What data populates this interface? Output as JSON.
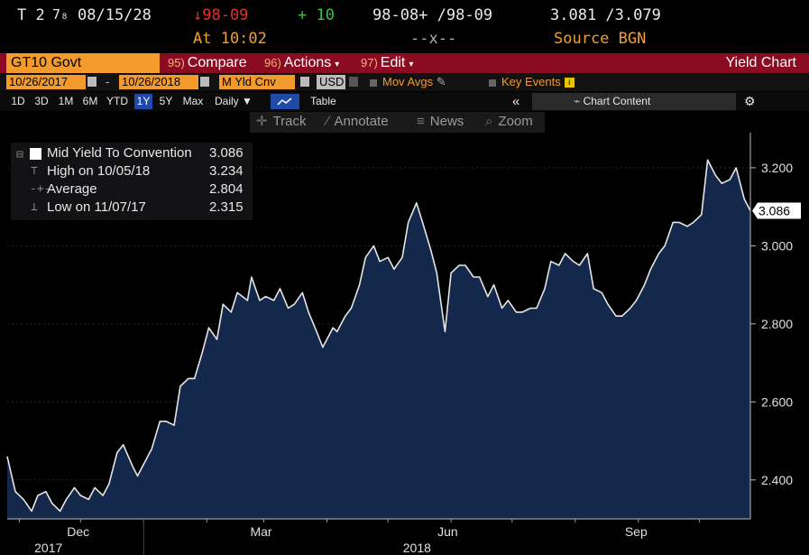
{
  "quote": {
    "security": "T 2",
    "coupon_frac": "7₈",
    "maturity": "08/15/28",
    "price": "↓98-09",
    "change": "+ 10",
    "time_label": "At 10:02",
    "bid_ask_price": "98-08+ /98-09",
    "bid_ask_sep": "--x--",
    "yield": "3.081 /3.079",
    "source": "Source BGN"
  },
  "toolbar": {
    "security_input": "GT10 Govt",
    "compare": {
      "num": "95)",
      "label": "Compare"
    },
    "actions": {
      "num": "96)",
      "label": "Actions"
    },
    "edit": {
      "num": "97)",
      "label": "Edit"
    },
    "chart_title": "Yield Chart"
  },
  "settings": {
    "start_date": "10/26/2017",
    "dash": "-",
    "end_date": "10/26/2018",
    "field": "M Yld Cnv",
    "currency": "USD",
    "mov_avgs": "Mov Avgs",
    "key_events": "Key Events"
  },
  "periods": {
    "items": [
      "1D",
      "3D",
      "1M",
      "6M",
      "YTD",
      "1Y",
      "5Y",
      "Max"
    ],
    "selected": "1Y",
    "frequency": "Daily",
    "table": "Table",
    "collapse": "«",
    "chart_content": "Chart Content"
  },
  "tools": {
    "track": "Track",
    "annotate": "Annotate",
    "news": "News",
    "zoom": "Zoom"
  },
  "legend": {
    "series": {
      "label": "Mid Yield To Convention",
      "value": "3.086"
    },
    "high": {
      "label": "High on 10/05/18",
      "value": "3.234"
    },
    "average": {
      "label": "Average",
      "value": "2.804"
    },
    "low": {
      "label": "Low on 11/07/17",
      "value": "2.315"
    }
  },
  "colors": {
    "line": "#e6e6e6",
    "area": "#13284a",
    "accent_orange": "#f39a2c",
    "bar_red": "#8a0b22"
  },
  "chart_data": {
    "type": "area",
    "series_name": "Mid Yield To Convention",
    "last_value_label": "3.086",
    "ylim": [
      2.3,
      3.29
    ],
    "yticks": [
      2.4,
      2.6,
      2.8,
      3.0,
      3.2
    ],
    "ytick_labels": [
      "2.400",
      "2.600",
      "2.800",
      "3.000",
      "3.200"
    ],
    "xlim": [
      "2017-10-26",
      "2018-10-26"
    ],
    "month_labels": [
      {
        "label": "Dec",
        "date": "2017-12-01"
      },
      {
        "label": "Mar",
        "date": "2018-03-01"
      },
      {
        "label": "Jun",
        "date": "2018-06-01"
      },
      {
        "label": "Sep",
        "date": "2018-09-01"
      }
    ],
    "year_labels": [
      {
        "label": "2017",
        "date": "2017-11-15"
      },
      {
        "label": "2018",
        "date": "2018-05-15"
      }
    ],
    "x": [
      "2017-10-26",
      "2017-10-30",
      "2017-11-03",
      "2017-11-07",
      "2017-11-10",
      "2017-11-14",
      "2017-11-17",
      "2017-11-21",
      "2017-11-24",
      "2017-11-28",
      "2017-12-01",
      "2017-12-05",
      "2017-12-08",
      "2017-12-12",
      "2017-12-15",
      "2017-12-19",
      "2017-12-22",
      "2017-12-27",
      "2017-12-29",
      "2018-01-03",
      "2018-01-05",
      "2018-01-09",
      "2018-01-12",
      "2018-01-16",
      "2018-01-19",
      "2018-01-23",
      "2018-01-26",
      "2018-01-30",
      "2018-02-02",
      "2018-02-06",
      "2018-02-09",
      "2018-02-13",
      "2018-02-16",
      "2018-02-21",
      "2018-02-23",
      "2018-02-27",
      "2018-03-02",
      "2018-03-06",
      "2018-03-09",
      "2018-03-13",
      "2018-03-16",
      "2018-03-20",
      "2018-03-23",
      "2018-03-27",
      "2018-03-30",
      "2018-04-04",
      "2018-04-06",
      "2018-04-10",
      "2018-04-13",
      "2018-04-17",
      "2018-04-20",
      "2018-04-24",
      "2018-04-27",
      "2018-05-01",
      "2018-05-04",
      "2018-05-08",
      "2018-05-11",
      "2018-05-15",
      "2018-05-18",
      "2018-05-22",
      "2018-05-25",
      "2018-05-29",
      "2018-06-01",
      "2018-06-05",
      "2018-06-08",
      "2018-06-12",
      "2018-06-15",
      "2018-06-19",
      "2018-06-22",
      "2018-06-26",
      "2018-06-29",
      "2018-07-03",
      "2018-07-06",
      "2018-07-10",
      "2018-07-13",
      "2018-07-17",
      "2018-07-20",
      "2018-07-24",
      "2018-07-27",
      "2018-07-31",
      "2018-08-03",
      "2018-08-07",
      "2018-08-10",
      "2018-08-14",
      "2018-08-17",
      "2018-08-21",
      "2018-08-24",
      "2018-08-28",
      "2018-08-31",
      "2018-09-04",
      "2018-09-07",
      "2018-09-11",
      "2018-09-14",
      "2018-09-18",
      "2018-09-21",
      "2018-09-25",
      "2018-09-28",
      "2018-10-02",
      "2018-10-05",
      "2018-10-09",
      "2018-10-12",
      "2018-10-16",
      "2018-10-19",
      "2018-10-23",
      "2018-10-26"
    ],
    "y": [
      2.46,
      2.37,
      2.35,
      2.32,
      2.36,
      2.37,
      2.34,
      2.32,
      2.35,
      2.38,
      2.36,
      2.35,
      2.38,
      2.36,
      2.39,
      2.47,
      2.49,
      2.43,
      2.41,
      2.46,
      2.48,
      2.55,
      2.55,
      2.54,
      2.64,
      2.66,
      2.66,
      2.73,
      2.79,
      2.76,
      2.85,
      2.83,
      2.88,
      2.86,
      2.92,
      2.86,
      2.87,
      2.86,
      2.89,
      2.84,
      2.85,
      2.88,
      2.83,
      2.78,
      2.74,
      2.79,
      2.78,
      2.82,
      2.84,
      2.9,
      2.97,
      3.0,
      2.96,
      2.97,
      2.94,
      2.97,
      3.06,
      3.11,
      3.06,
      2.99,
      2.93,
      2.78,
      2.93,
      2.95,
      2.95,
      2.92,
      2.92,
      2.87,
      2.9,
      2.84,
      2.86,
      2.83,
      2.83,
      2.84,
      2.84,
      2.89,
      2.96,
      2.95,
      2.98,
      2.96,
      2.95,
      2.98,
      2.89,
      2.88,
      2.85,
      2.82,
      2.82,
      2.84,
      2.86,
      2.9,
      2.94,
      2.98,
      3.0,
      3.06,
      3.06,
      3.05,
      3.06,
      3.08,
      3.22,
      3.18,
      3.16,
      3.17,
      3.2,
      3.12,
      3.09
    ]
  }
}
